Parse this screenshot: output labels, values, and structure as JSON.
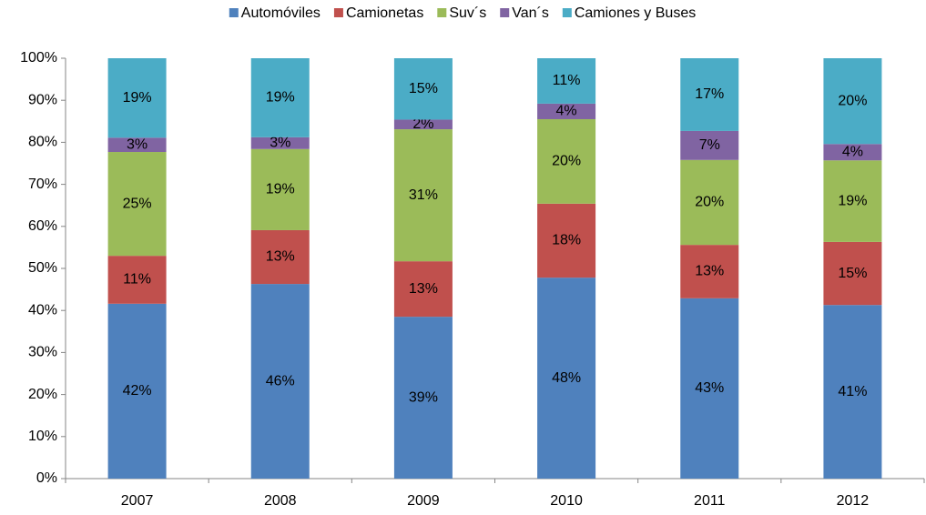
{
  "chart_data": {
    "type": "bar",
    "stacked": true,
    "categories": [
      "2007",
      "2008",
      "2009",
      "2010",
      "2011",
      "2012"
    ],
    "series": [
      {
        "name": "Automóviles",
        "color": "#4f81bd",
        "values": [
          41.6,
          46.3,
          38.5,
          47.8,
          42.9,
          41.3
        ],
        "value_labels": [
          "42%",
          "46%",
          "39%",
          "48%",
          "43%",
          "41%"
        ]
      },
      {
        "name": "Camionetas",
        "color": "#c0504d",
        "values": [
          11.4,
          12.8,
          13.2,
          17.6,
          12.7,
          15.0
        ],
        "value_labels": [
          "11%",
          "13%",
          "13%",
          "18%",
          "13%",
          "15%"
        ]
      },
      {
        "name": "Suv´s",
        "color": "#9bbb59",
        "values": [
          24.7,
          19.3,
          31.4,
          20.1,
          20.2,
          19.4
        ],
        "value_labels": [
          "25%",
          "19%",
          "31%",
          "20%",
          "20%",
          "19%"
        ]
      },
      {
        "name": "Van´s",
        "color": "#8064a2",
        "values": [
          3.4,
          2.8,
          2.3,
          3.7,
          6.9,
          3.9
        ],
        "value_labels": [
          "3%",
          "3%",
          "2%",
          "4%",
          "7%",
          "4%"
        ]
      },
      {
        "name": "Camiones y Buses",
        "color": "#4bacc6",
        "values": [
          18.9,
          18.8,
          14.6,
          10.8,
          17.3,
          20.4
        ],
        "value_labels": [
          "19%",
          "19%",
          "15%",
          "11%",
          "17%",
          "20%"
        ]
      }
    ],
    "ylim": [
      0,
      100
    ],
    "yticks": [
      {
        "value": 0,
        "label": "0%"
      },
      {
        "value": 10,
        "label": "10%"
      },
      {
        "value": 20,
        "label": "20%"
      },
      {
        "value": 30,
        "label": "30%"
      },
      {
        "value": 40,
        "label": "40%"
      },
      {
        "value": 50,
        "label": "50%"
      },
      {
        "value": 60,
        "label": "60%"
      },
      {
        "value": 70,
        "label": "70%"
      },
      {
        "value": 80,
        "label": "80%"
      },
      {
        "value": 90,
        "label": "90%"
      },
      {
        "value": 100,
        "label": "100%"
      }
    ],
    "legend": "top",
    "grid": false
  }
}
